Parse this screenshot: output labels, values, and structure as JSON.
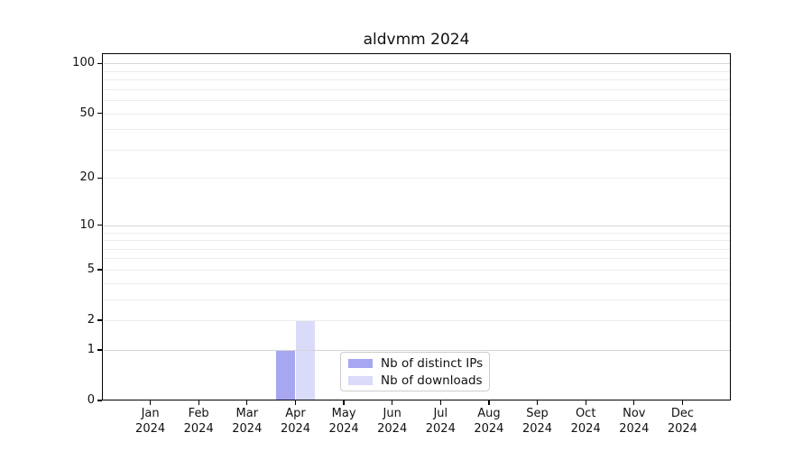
{
  "chart_data": {
    "type": "bar",
    "title": "aldvmm 2024",
    "categories": [
      "Jan",
      "Feb",
      "Mar",
      "Apr",
      "May",
      "Jun",
      "Jul",
      "Aug",
      "Sep",
      "Oct",
      "Nov",
      "Dec"
    ],
    "x_tick_second_line": "2024",
    "series": [
      {
        "name": "Nb of distinct IPs",
        "color": "#a6a6f1",
        "values": [
          0,
          0,
          0,
          1,
          0,
          0,
          0,
          0,
          0,
          0,
          0,
          0
        ]
      },
      {
        "name": "Nb of downloads",
        "color": "#dadaf9",
        "values": [
          0,
          0,
          0,
          2,
          0,
          0,
          0,
          0,
          0,
          0,
          0,
          0
        ]
      }
    ],
    "y_axis": {
      "scale": "log1p",
      "ticks": [
        0,
        1,
        2,
        5,
        10,
        20,
        50,
        100
      ],
      "limit_max": 115,
      "major_gridlines": [
        1,
        10,
        100
      ],
      "minor_gridlines": [
        2,
        3,
        4,
        5,
        6,
        7,
        8,
        9,
        20,
        30,
        40,
        50,
        60,
        70,
        80,
        90
      ]
    },
    "legend_position": "lower center-right inside plot",
    "grid": "horizontal only"
  },
  "styles": {
    "background": "#ffffff",
    "axis_color": "#000000",
    "text_color": "#111111",
    "grid_major_color": "#d6d6d6",
    "grid_minor_color": "#ececec",
    "legend_border_color": "#cccccc"
  }
}
